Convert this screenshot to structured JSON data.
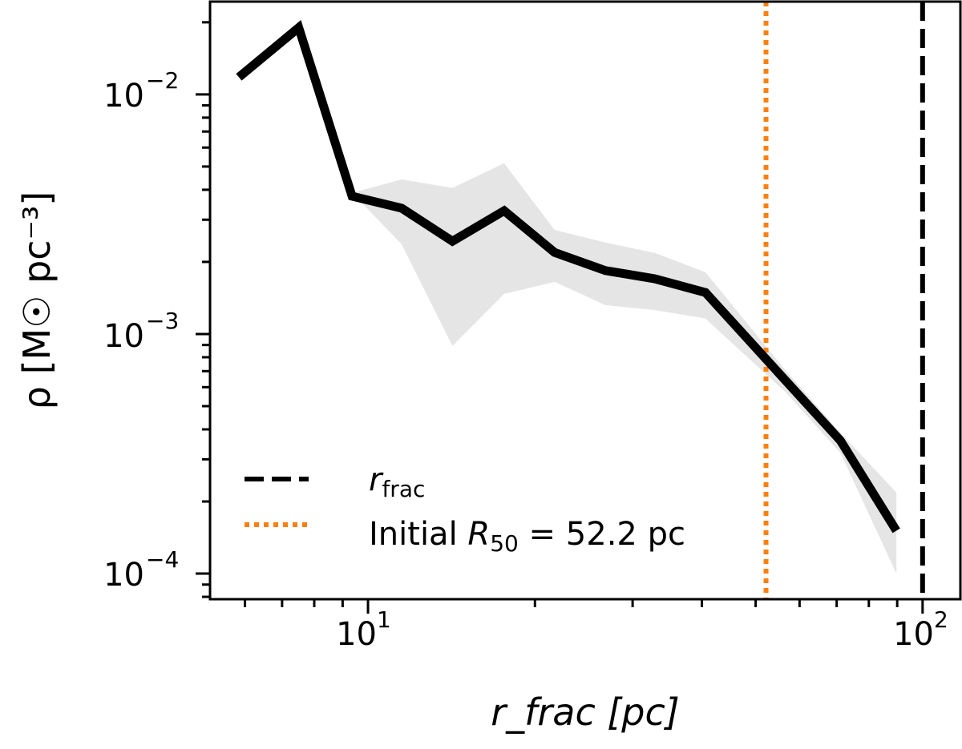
{
  "chart_data": {
    "type": "line",
    "xscale": "log",
    "yscale": "log",
    "xlim": [
      5.19,
      117
    ],
    "ylim": [
      7.82e-05,
      0.0244
    ],
    "grid": false,
    "xlabel": "r_frac [pc]",
    "ylabel": "ρ [M☉ pc⁻³]",
    "x_ticks": [
      {
        "base": "10",
        "exp": "1",
        "value": 10
      },
      {
        "base": "10",
        "exp": "2",
        "value": 100
      }
    ],
    "y_ticks": [
      {
        "base": "10",
        "exp": "−2",
        "value": 0.01
      },
      {
        "base": "10",
        "exp": "−3",
        "value": 0.001
      },
      {
        "base": "10",
        "exp": "−4",
        "value": 0.0001
      }
    ],
    "series": [
      {
        "style": "solid",
        "color": "#000000",
        "x": [
          5.85,
          7.5,
          9.36,
          11.5,
          14.2,
          17.6,
          21.7,
          26.8,
          32.9,
          40.6,
          56.6,
          71.1,
          89.7
        ],
        "y": [
          0.0118,
          0.019,
          0.00376,
          0.00335,
          0.00244,
          0.00327,
          0.00219,
          0.00184,
          0.0017,
          0.00149,
          0.00064,
          0.000359,
          0.000151
        ]
      }
    ],
    "band": {
      "color": "#e5e5e5",
      "x": [
        9.36,
        11.5,
        14.2,
        17.6,
        21.7,
        26.8,
        32.9,
        40.6,
        56.6,
        71.1,
        89.7
      ],
      "upper": [
        0.00388,
        0.00442,
        0.00407,
        0.00516,
        0.00272,
        0.00241,
        0.00218,
        0.00181,
        0.000705,
        0.000387,
        0.000218
      ],
      "lower": [
        0.00388,
        0.00237,
        0.000892,
        0.00147,
        0.00165,
        0.00132,
        0.00126,
        0.00116,
        0.000572,
        0.000319,
        0.0001
      ]
    },
    "vlines": [
      {
        "x": 100,
        "style": "dashed",
        "color": "#000000"
      },
      {
        "x": 52.2,
        "style": "dotted",
        "color": "#ff7f0e"
      }
    ],
    "legend": {
      "placement": "lower-left",
      "entries": [
        {
          "style": "dashed",
          "color": "#000000",
          "label_main": "r",
          "label_sub": "frac"
        },
        {
          "style": "dotted",
          "color": "#ff7f0e",
          "label_pre": "Initial ",
          "label_main": "R",
          "label_sub": "50",
          "label_post": " = 52.2 pc"
        }
      ]
    }
  }
}
